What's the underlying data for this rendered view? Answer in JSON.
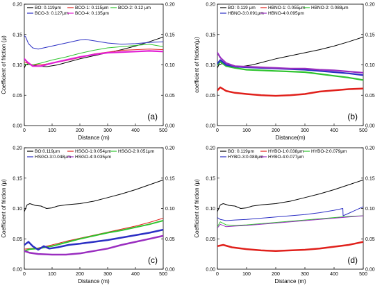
{
  "chart_data": [
    {
      "type": "line",
      "panel_label": "(a)",
      "xlabel": "Distance (m)",
      "ylabel_left": "Coefficient of friction (μ)",
      "ylabel_right": "",
      "xlim": [
        0,
        500
      ],
      "ylim": [
        0,
        0.2
      ],
      "xticks": [
        "0",
        "100",
        "200",
        "300",
        "400",
        "500"
      ],
      "yticks": [
        "0.00",
        "0.05",
        "0.10",
        "0.15",
        "0.20"
      ],
      "series": [
        {
          "name": "BO: 0.119μm",
          "color": "#000000",
          "width": 1,
          "x": [
            0,
            5,
            15,
            30,
            50,
            80,
            120,
            160,
            200,
            250,
            300,
            350,
            400,
            450,
            500
          ],
          "y": [
            0.095,
            0.1,
            0.102,
            0.1,
            0.098,
            0.097,
            0.1,
            0.105,
            0.11,
            0.115,
            0.12,
            0.125,
            0.131,
            0.138,
            0.146
          ]
        },
        {
          "name": "BCO-1: 0.115μm",
          "color": "#e0201b",
          "width": 1,
          "x": [
            0,
            10,
            30,
            60,
            100,
            150,
            200,
            250,
            300,
            350,
            400,
            450,
            500
          ],
          "y": [
            0.105,
            0.103,
            0.1,
            0.1,
            0.103,
            0.107,
            0.112,
            0.118,
            0.121,
            0.124,
            0.125,
            0.126,
            0.125
          ]
        },
        {
          "name": "BCO-2: 0.12 μm",
          "color": "#2ec42e",
          "width": 1,
          "x": [
            0,
            10,
            30,
            60,
            100,
            150,
            200,
            250,
            300,
            350,
            400,
            450,
            500
          ],
          "y": [
            0.102,
            0.1,
            0.1,
            0.103,
            0.108,
            0.113,
            0.119,
            0.124,
            0.128,
            0.13,
            0.132,
            0.134,
            0.13
          ]
        },
        {
          "name": "BCO-3: 0.127μm",
          "color": "#2b2fc4",
          "width": 1,
          "x": [
            0,
            5,
            15,
            30,
            50,
            80,
            120,
            160,
            200,
            220,
            260,
            300,
            350,
            400,
            450,
            500
          ],
          "y": [
            0.148,
            0.146,
            0.135,
            0.128,
            0.126,
            0.129,
            0.133,
            0.137,
            0.141,
            0.142,
            0.139,
            0.136,
            0.134,
            0.135,
            0.137,
            0.138
          ]
        },
        {
          "name": "BCO-4: 0.135μm",
          "color": "#e21fd3",
          "width": 2.2,
          "x": [
            0,
            10,
            30,
            60,
            100,
            150,
            200,
            250,
            300,
            350,
            400,
            450,
            500
          ],
          "y": [
            0.11,
            0.105,
            0.098,
            0.098,
            0.103,
            0.108,
            0.113,
            0.117,
            0.12,
            0.121,
            0.122,
            0.123,
            0.122
          ]
        }
      ]
    },
    {
      "type": "line",
      "panel_label": "(b)",
      "xlabel": "Distance(m)",
      "ylabel_left": "coefficient of friction(μ)",
      "ylabel_right": "",
      "xlim": [
        0,
        500
      ],
      "ylim": [
        0,
        0.2
      ],
      "xticks": [
        "0",
        "100",
        "200",
        "300",
        "400",
        "500"
      ],
      "yticks": [
        "0.00",
        "0.05",
        "0.10",
        "0.15",
        "0.20"
      ],
      "series": [
        {
          "name": "BO: 0.119 μm",
          "color": "#000000",
          "width": 1,
          "x": [
            0,
            5,
            15,
            30,
            50,
            80,
            120,
            160,
            200,
            250,
            300,
            350,
            400,
            450,
            500
          ],
          "y": [
            0.095,
            0.1,
            0.102,
            0.1,
            0.098,
            0.097,
            0.1,
            0.105,
            0.11,
            0.115,
            0.12,
            0.125,
            0.131,
            0.138,
            0.146
          ]
        },
        {
          "name": "HBNO-1: 0.055μm",
          "color": "#e0201b",
          "width": 2.5,
          "x": [
            0,
            10,
            30,
            60,
            100,
            150,
            200,
            250,
            300,
            350,
            400,
            450,
            500
          ],
          "y": [
            0.058,
            0.063,
            0.057,
            0.054,
            0.052,
            0.05,
            0.049,
            0.05,
            0.052,
            0.056,
            0.058,
            0.06,
            0.061
          ]
        },
        {
          "name": "HBNO-2: 0.088μm",
          "color": "#2ec42e",
          "width": 2.2,
          "x": [
            0,
            10,
            30,
            60,
            100,
            150,
            200,
            250,
            300,
            350,
            400,
            450,
            500
          ],
          "y": [
            0.1,
            0.105,
            0.098,
            0.095,
            0.092,
            0.091,
            0.09,
            0.089,
            0.088,
            0.085,
            0.082,
            0.079,
            0.075
          ]
        },
        {
          "name": "HBNO-3:0.091μm",
          "color": "#2b2fc4",
          "width": 2.2,
          "x": [
            0,
            10,
            30,
            60,
            100,
            150,
            200,
            250,
            300,
            350,
            400,
            450,
            500
          ],
          "y": [
            0.102,
            0.108,
            0.1,
            0.097,
            0.096,
            0.095,
            0.094,
            0.093,
            0.092,
            0.09,
            0.088,
            0.086,
            0.083
          ]
        },
        {
          "name": "HBNO-4:0.095μm",
          "color": "#9a2ec0",
          "width": 2.2,
          "x": [
            0,
            10,
            30,
            60,
            100,
            150,
            200,
            250,
            300,
            350,
            400,
            450,
            500
          ],
          "y": [
            0.12,
            0.112,
            0.103,
            0.098,
            0.097,
            0.096,
            0.095,
            0.094,
            0.094,
            0.092,
            0.091,
            0.089,
            0.087
          ]
        }
      ]
    },
    {
      "type": "line",
      "panel_label": "(c)",
      "xlabel": "Distance (m)",
      "ylabel_left": "Coefficient of friction (μ)",
      "ylabel_right": "",
      "xlim": [
        0,
        500
      ],
      "ylim": [
        0,
        0.2
      ],
      "xticks": [
        "0",
        "100",
        "200",
        "300",
        "400",
        "500"
      ],
      "yticks": [
        "0.00",
        "0.05",
        "0.10",
        "0.15",
        "0.20"
      ],
      "series": [
        {
          "name": "BO:0.119μm",
          "color": "#000000",
          "width": 1,
          "x": [
            0,
            10,
            20,
            40,
            60,
            80,
            100,
            120,
            150,
            200,
            250,
            300,
            350,
            400,
            450,
            500
          ],
          "y": [
            0.095,
            0.106,
            0.108,
            0.105,
            0.104,
            0.1,
            0.101,
            0.104,
            0.106,
            0.108,
            0.112,
            0.118,
            0.124,
            0.131,
            0.139,
            0.147
          ]
        },
        {
          "name": "HSGO-1:0.054μm",
          "color": "#e0201b",
          "width": 1,
          "x": [
            0,
            20,
            50,
            100,
            150,
            200,
            250,
            300,
            350,
            400,
            450,
            500
          ],
          "y": [
            0.033,
            0.034,
            0.035,
            0.04,
            0.046,
            0.051,
            0.056,
            0.061,
            0.066,
            0.071,
            0.077,
            0.084
          ]
        },
        {
          "name": "HSGO-2:0.051μm",
          "color": "#2ec42e",
          "width": 2,
          "x": [
            0,
            20,
            50,
            100,
            150,
            200,
            250,
            300,
            350,
            400,
            450,
            500
          ],
          "y": [
            0.03,
            0.033,
            0.034,
            0.038,
            0.044,
            0.05,
            0.055,
            0.06,
            0.064,
            0.069,
            0.074,
            0.08
          ]
        },
        {
          "name": "HSGO-3:0.048μm",
          "color": "#2b2fc4",
          "width": 2.5,
          "x": [
            0,
            15,
            30,
            50,
            70,
            90,
            120,
            160,
            200,
            250,
            300,
            350,
            400,
            450,
            500
          ],
          "y": [
            0.04,
            0.045,
            0.038,
            0.032,
            0.038,
            0.034,
            0.036,
            0.04,
            0.042,
            0.045,
            0.048,
            0.052,
            0.056,
            0.06,
            0.065
          ]
        },
        {
          "name": "HSGO-4:0.035μm",
          "color": "#9a2ec0",
          "width": 2.5,
          "x": [
            0,
            20,
            50,
            100,
            150,
            200,
            250,
            300,
            350,
            400,
            450,
            500
          ],
          "y": [
            0.03,
            0.027,
            0.025,
            0.024,
            0.024,
            0.026,
            0.03,
            0.034,
            0.04,
            0.045,
            0.05,
            0.055
          ]
        }
      ]
    },
    {
      "type": "line",
      "panel_label": "(d)",
      "xlabel": "Distance (m)",
      "ylabel_left": "Coefficient of friction (μ)",
      "ylabel_right": "",
      "xlim": [
        0,
        500
      ],
      "ylim": [
        0,
        0.2
      ],
      "xticks": [
        "0",
        "100",
        "200",
        "300",
        "400",
        "500"
      ],
      "yticks": [
        "0.00",
        "0.05",
        "0.10",
        "0.15",
        "0.20"
      ],
      "series": [
        {
          "name": "BO: 0.119μm",
          "color": "#000000",
          "width": 1,
          "x": [
            0,
            10,
            20,
            40,
            60,
            80,
            100,
            120,
            150,
            200,
            250,
            300,
            350,
            400,
            450,
            500
          ],
          "y": [
            0.095,
            0.106,
            0.108,
            0.105,
            0.104,
            0.1,
            0.101,
            0.104,
            0.106,
            0.108,
            0.112,
            0.118,
            0.124,
            0.131,
            0.139,
            0.147
          ]
        },
        {
          "name": "HYBO-1:0.038μm",
          "color": "#e0201b",
          "width": 2.5,
          "x": [
            0,
            20,
            50,
            100,
            150,
            200,
            250,
            300,
            350,
            400,
            450,
            500
          ],
          "y": [
            0.038,
            0.04,
            0.036,
            0.033,
            0.031,
            0.03,
            0.031,
            0.032,
            0.034,
            0.037,
            0.04,
            0.045
          ]
        },
        {
          "name": "HYBO-2:0.079μm",
          "color": "#2ec42e",
          "width": 1,
          "x": [
            0,
            10,
            30,
            60,
            100,
            150,
            200,
            250,
            300,
            350,
            400,
            450,
            500
          ],
          "y": [
            0.07,
            0.078,
            0.073,
            0.072,
            0.073,
            0.075,
            0.077,
            0.079,
            0.081,
            0.083,
            0.085,
            0.087,
            0.088
          ]
        },
        {
          "name": "HYBO-3:0.088μm",
          "color": "#2b2fc4",
          "width": 1,
          "x": [
            0,
            10,
            30,
            60,
            100,
            150,
            200,
            250,
            300,
            350,
            400,
            430,
            431,
            450,
            500
          ],
          "y": [
            0.085,
            0.082,
            0.08,
            0.081,
            0.082,
            0.084,
            0.086,
            0.088,
            0.09,
            0.093,
            0.097,
            0.1,
            0.088,
            0.092,
            0.103
          ]
        },
        {
          "name": "HYBO-4:0.077μm",
          "color": "#9a2ec0",
          "width": 1,
          "x": [
            0,
            10,
            30,
            60,
            100,
            150,
            200,
            250,
            300,
            350,
            400,
            450,
            500
          ],
          "y": [
            0.068,
            0.074,
            0.07,
            0.071,
            0.072,
            0.074,
            0.076,
            0.078,
            0.08,
            0.082,
            0.084,
            0.086,
            0.088
          ]
        }
      ]
    }
  ]
}
